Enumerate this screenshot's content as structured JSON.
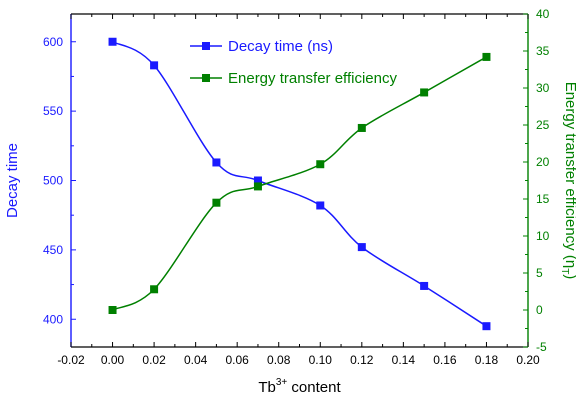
{
  "chart_data": {
    "type": "line",
    "title": "",
    "xlabel": {
      "base": "Tb",
      "sup": "3+",
      "rest": " content"
    },
    "ylabel_left": "Decay time",
    "ylabel_right": {
      "base": "Energy transfer efficiency (η",
      "sub": "T",
      "rest": ")"
    },
    "xlim": [
      -0.02,
      0.2
    ],
    "ylim_left": [
      380,
      620
    ],
    "ylim_right": [
      -5,
      40
    ],
    "x_ticks": [
      "-0.02",
      "0.00",
      "0.02",
      "0.04",
      "0.06",
      "0.08",
      "0.10",
      "0.12",
      "0.14",
      "0.16",
      "0.18",
      "0.20"
    ],
    "y_left_ticks": [
      "400",
      "450",
      "500",
      "550",
      "600"
    ],
    "y_right_ticks": [
      "-5",
      "0",
      "5",
      "10",
      "15",
      "20",
      "25",
      "30",
      "35",
      "40"
    ],
    "grid": false,
    "legend_position": "top-center",
    "colors": {
      "left_axis": "#1a1aff",
      "right_axis": "#008000",
      "axes": "#000000"
    },
    "series": [
      {
        "name": "Decay time (ns)",
        "axis": "left",
        "color": "#1a1aff",
        "marker": "square",
        "x": [
          0.0,
          0.02,
          0.05,
          0.07,
          0.1,
          0.12,
          0.15,
          0.18
        ],
        "values": [
          600,
          583,
          513,
          500,
          482,
          452,
          424,
          395
        ]
      },
      {
        "name": "Energy transfer efficiency",
        "axis": "right",
        "color": "#008000",
        "marker": "square",
        "x": [
          0.0,
          0.02,
          0.05,
          0.07,
          0.1,
          0.12,
          0.15,
          0.18
        ],
        "values": [
          0,
          2.8,
          14.5,
          16.7,
          19.7,
          24.6,
          29.4,
          34.2
        ]
      }
    ]
  }
}
